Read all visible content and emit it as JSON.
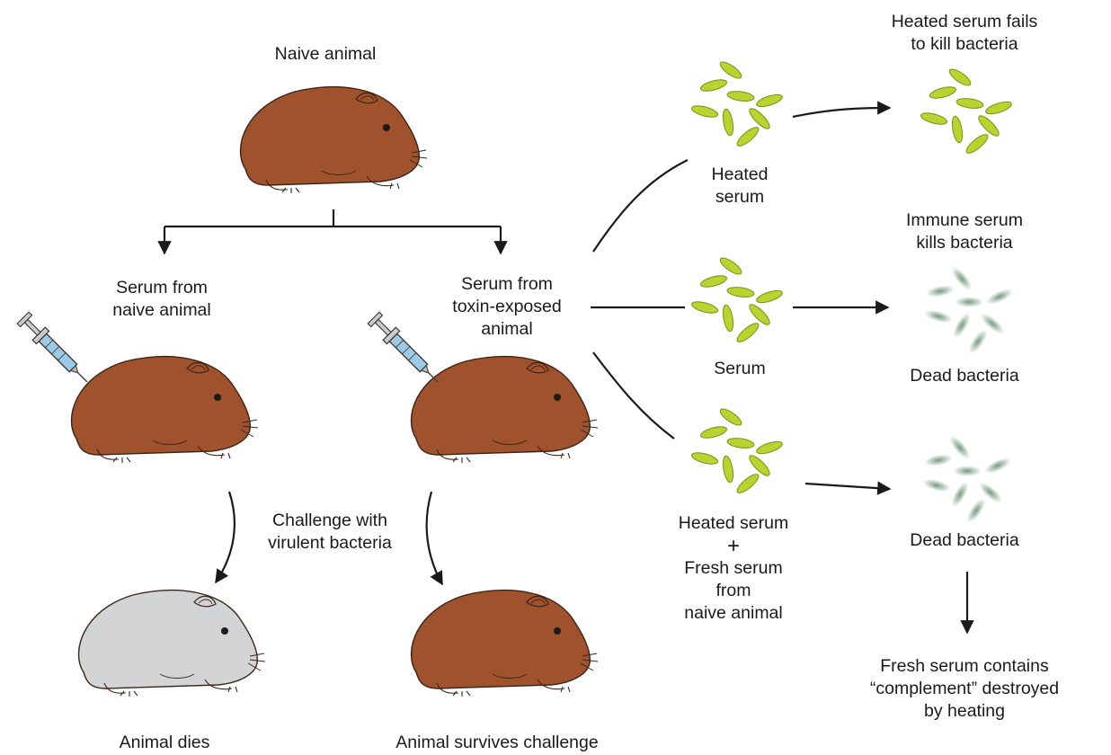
{
  "labels": {
    "naive_animal": "Naive animal",
    "serum_naive": [
      "Serum from",
      "naive animal"
    ],
    "serum_toxin": [
      "Serum from",
      "toxin-exposed",
      "animal"
    ],
    "challenge": [
      "Challenge with",
      "virulent bacteria"
    ],
    "animal_dies": "Animal dies",
    "animal_survives": "Animal survives challenge",
    "heated_serum": [
      "Heated",
      "serum"
    ],
    "serum": "Serum",
    "heated_plus_fresh": [
      "Heated serum",
      "+",
      "Fresh serum",
      "from",
      "naive animal"
    ],
    "heated_fails": [
      "Heated serum fails",
      "to kill bacteria"
    ],
    "immune_kills": [
      "Immune serum",
      "kills bacteria"
    ],
    "dead_bacteria_1": "Dead bacteria",
    "dead_bacteria_2": "Dead bacteria",
    "conclusion": [
      "Fresh serum contains",
      "“complement” destroyed",
      "by heating"
    ]
  },
  "colors": {
    "guinea_pig_fur": "#a0522d",
    "dead_guinea_pig": "#d3d4d6",
    "live_bacteria": "#b9d42e",
    "dead_bacteria": "#5e8a6a",
    "syringe_barrel": "#9ccbe8",
    "arrow": "#1a1a1a"
  }
}
